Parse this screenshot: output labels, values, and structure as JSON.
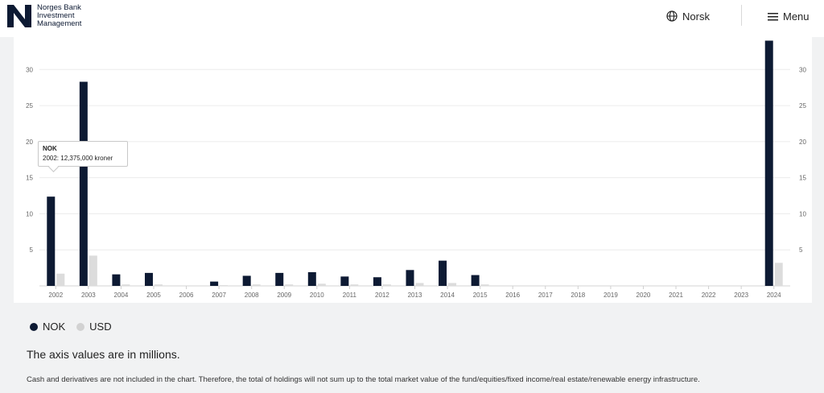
{
  "header": {
    "logo_lines": [
      "Norges Bank",
      "Investment",
      "Management"
    ],
    "lang_label": "Norsk",
    "menu_label": "Menu",
    "icons": {
      "lang": "globe-icon",
      "menu": "hamburger-icon"
    }
  },
  "colors": {
    "nok": "#0d1a33",
    "usd": "#dcdcdc",
    "grid": "#ececec"
  },
  "tooltip": {
    "title": "NOK",
    "text": "2002: 12,375,000 kroner"
  },
  "legend": [
    {
      "label": "NOK",
      "color": "#0d1a33"
    },
    {
      "label": "USD",
      "color": "#d2d2d2"
    }
  ],
  "note": "The axis values are in millions.",
  "footnote": "Cash and derivatives are not included in the chart. Therefore, the total of holdings will not sum up to the total market value of the fund/equities/fixed income/real estate/renewable energy infrastructure.",
  "chart_data": {
    "type": "bar",
    "categories": [
      "2002",
      "2003",
      "2004",
      "2005",
      "2006",
      "2007",
      "2008",
      "2009",
      "2010",
      "2011",
      "2012",
      "2013",
      "2014",
      "2015",
      "2016",
      "2017",
      "2018",
      "2019",
      "2020",
      "2021",
      "2022",
      "2023",
      "2024"
    ],
    "series": [
      {
        "name": "NOK",
        "values": [
          12.375,
          28.3,
          1.6,
          1.8,
          0,
          0.6,
          1.4,
          1.8,
          1.9,
          1.3,
          1.2,
          2.2,
          3.5,
          1.5,
          0,
          0,
          0,
          0,
          0,
          0,
          0,
          0,
          34
        ]
      },
      {
        "name": "USD",
        "values": [
          1.7,
          4.2,
          0.2,
          0.2,
          0,
          0.1,
          0.2,
          0.2,
          0.3,
          0.2,
          0.2,
          0.4,
          0.4,
          0.2,
          0,
          0,
          0,
          0,
          0,
          0,
          0,
          0,
          3.2
        ]
      }
    ],
    "yticks": [
      5,
      10,
      15,
      20,
      25,
      30
    ],
    "ylim": [
      0,
      34.5
    ],
    "grid": true,
    "legend_position": "bottom-left"
  }
}
